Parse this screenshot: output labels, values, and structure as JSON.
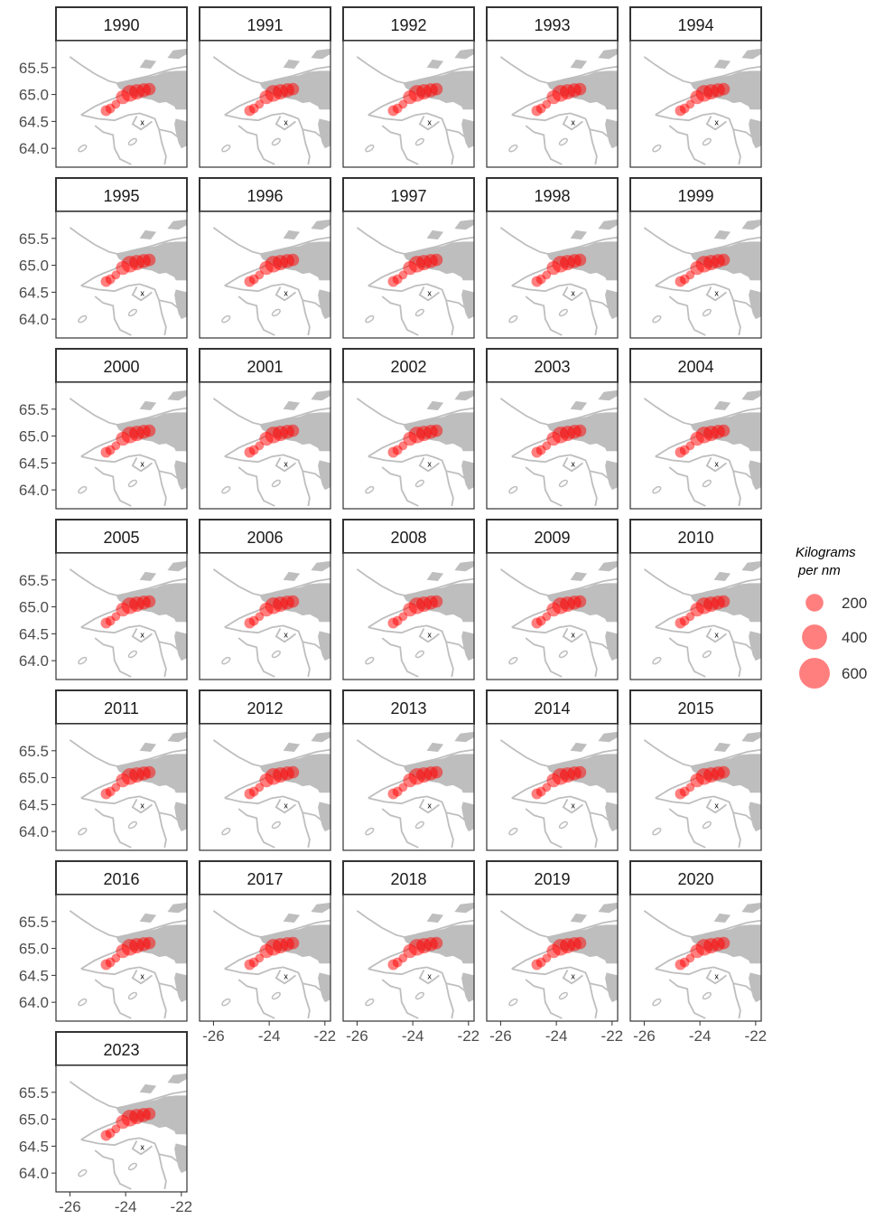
{
  "chart_data": {
    "type": "scatter",
    "title": "",
    "xlabel": "",
    "ylabel": "",
    "xlim": [
      -26.5,
      -21.8
    ],
    "ylim": [
      63.65,
      66.0
    ],
    "x_ticks": [
      "-26",
      "-24",
      "-22"
    ],
    "y_ticks": [
      "64.0",
      "64.5",
      "65.0",
      "65.5"
    ],
    "panels": [
      "1990",
      "1991",
      "1992",
      "1993",
      "1994",
      "1995",
      "1996",
      "1997",
      "1998",
      "1999",
      "2000",
      "2001",
      "2002",
      "2003",
      "2004",
      "2005",
      "2006",
      "2008",
      "2009",
      "2010",
      "2011",
      "2012",
      "2013",
      "2014",
      "2015",
      "2016",
      "2017",
      "2018",
      "2019",
      "2020",
      "2023"
    ],
    "legend": {
      "title_line1": "Kilograms",
      "title_line2": "per nm",
      "entries": [
        {
          "label": "200",
          "value": 200
        },
        {
          "label": "400",
          "value": 400
        },
        {
          "label": "600",
          "value": 600
        }
      ]
    },
    "colors": {
      "catch": "#ff0000",
      "zero": "#000000",
      "land": "#bebebe",
      "coast": "#bebebe"
    },
    "zero_symbol": "x",
    "grid": false
  }
}
